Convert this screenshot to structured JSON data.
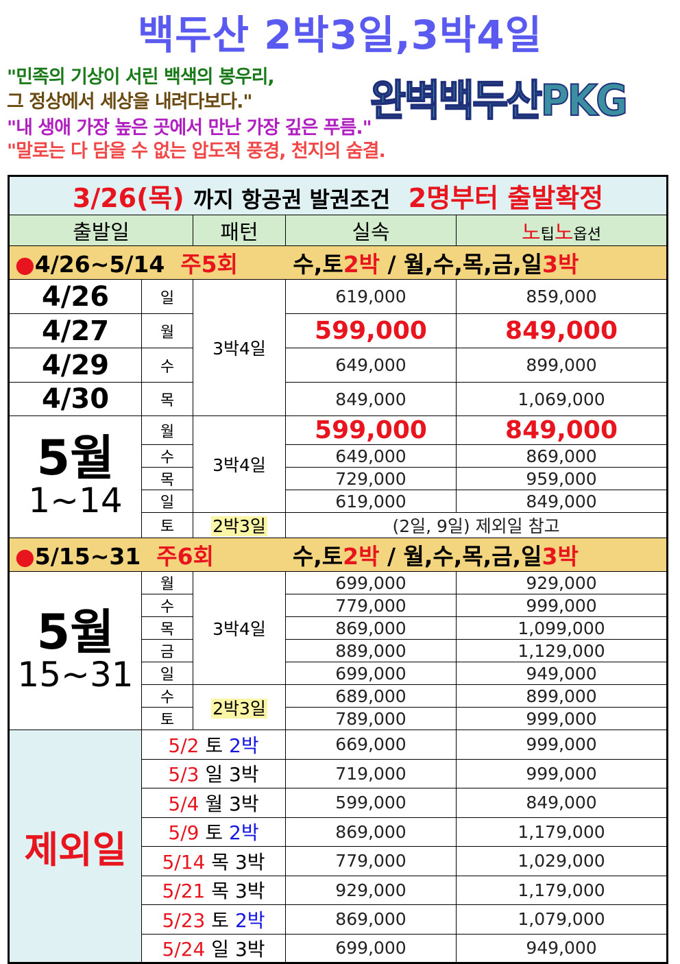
{
  "title": "백두산 2박3일,3박4일",
  "quotes": [
    {
      "text": "\"민족의 기상이 서린 백색의 봉우리,",
      "color": "#1a7a1a"
    },
    {
      "text": "그 정상에서 세상을 내려다보다.\"",
      "color": "#6b4a12"
    },
    {
      "text": "\"내 생애 가장 높은 곳에서 만난 가장 깊은 푸름.\"",
      "color": "#b020c0"
    },
    {
      "text": "\"말로는 다 담을 수 없는 압도적 풍경, 천지의 숨결.",
      "color": "#f04848"
    }
  ],
  "brand": "완벽백두산PKG",
  "banner": {
    "date": "3/26(목)",
    "middle": "까지 항공권 발권조건",
    "confirm": "2명부터 출발확정"
  },
  "headers": {
    "date": "출발일",
    "pattern": "패턴",
    "price": "실속",
    "option_a": "노",
    "option_b": "팁",
    "option_c": "노",
    "option_d": "옵션"
  },
  "section1": {
    "bullet": "●",
    "range": "4/26~5/14",
    "freq": "주5회",
    "days2": "수,토",
    "n2": "2박",
    "sep": "/",
    "days3": "월,수,목,금,일",
    "n3": "3박"
  },
  "rows1": [
    {
      "date": "4/26",
      "day": "일",
      "price": "619,000",
      "option": "859,000",
      "hl": false
    },
    {
      "date": "4/27",
      "day": "월",
      "price": "599,000",
      "option": "849,000",
      "hl": true
    },
    {
      "date": "4/29",
      "day": "수",
      "price": "649,000",
      "option": "899,000",
      "hl": false
    },
    {
      "date": "4/30",
      "day": "목",
      "price": "849,000",
      "option": "1,069,000",
      "hl": false
    }
  ],
  "pattern34": "3박4일",
  "pattern23": "2박3일",
  "may1": {
    "month": "5월",
    "range": "1~14",
    "rows": [
      {
        "day": "월",
        "price": "599,000",
        "option": "849,000",
        "hl": true
      },
      {
        "day": "수",
        "price": "649,000",
        "option": "869,000",
        "hl": false
      },
      {
        "day": "목",
        "price": "729,000",
        "option": "959,000",
        "hl": false
      },
      {
        "day": "일",
        "price": "619,000",
        "option": "849,000",
        "hl": false
      }
    ],
    "sat_day": "토",
    "sat_note": "(2일, 9일) 제외일 참고"
  },
  "section2": {
    "bullet": "●",
    "range": "5/15~31",
    "freq": "주6회",
    "days2": "수,토",
    "n2": "2박",
    "sep": "/",
    "days3": "월,수,목,금,일",
    "n3": "3박"
  },
  "may2": {
    "month": "5월",
    "range": "15~31",
    "rows": [
      {
        "day": "월",
        "price": "699,000",
        "option": "929,000"
      },
      {
        "day": "수",
        "price": "779,000",
        "option": "999,000"
      },
      {
        "day": "목",
        "price": "869,000",
        "option": "1,099,000"
      },
      {
        "day": "금",
        "price": "889,000",
        "option": "1,129,000"
      },
      {
        "day": "일",
        "price": "699,000",
        "option": "949,000"
      },
      {
        "day": "수",
        "price": "689,000",
        "option": "899,000"
      },
      {
        "day": "토",
        "price": "789,000",
        "option": "999,000"
      }
    ]
  },
  "excluded": {
    "label": "제외일",
    "rows": [
      {
        "date": "5/2",
        "day": "토",
        "nights": "2박",
        "price": "669,000",
        "option": "999,000"
      },
      {
        "date": "5/3",
        "day": "일",
        "nights": "3박",
        "price": "719,000",
        "option": "999,000"
      },
      {
        "date": "5/4",
        "day": "월",
        "nights": "3박",
        "price": "599,000",
        "option": "849,000"
      },
      {
        "date": "5/9",
        "day": "토",
        "nights": "2박",
        "price": "869,000",
        "option": "1,179,000"
      },
      {
        "date": "5/14",
        "day": "목",
        "nights": "3박",
        "price": "779,000",
        "option": "1,029,000"
      },
      {
        "date": "5/21",
        "day": "목",
        "nights": "3박",
        "price": "929,000",
        "option": "1,179,000"
      },
      {
        "date": "5/23",
        "day": "토",
        "nights": "2박",
        "price": "869,000",
        "option": "1,079,000"
      },
      {
        "date": "5/24",
        "day": "일",
        "nights": "3박",
        "price": "699,000",
        "option": "949,000"
      }
    ]
  }
}
